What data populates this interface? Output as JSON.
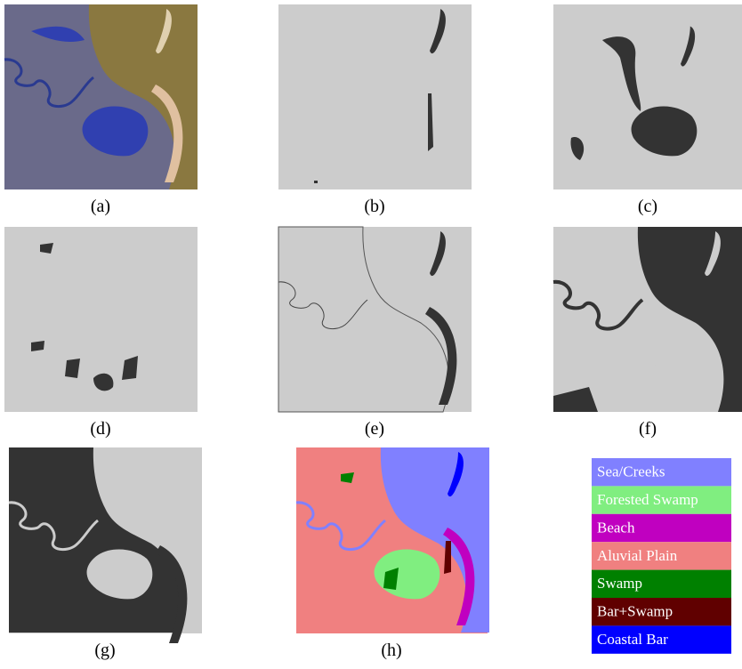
{
  "panels": [
    {
      "caption": "(a)"
    },
    {
      "caption": "(b)"
    },
    {
      "caption": "(c)"
    },
    {
      "caption": "(d)"
    },
    {
      "caption": "(e)"
    },
    {
      "caption": "(f)"
    },
    {
      "caption": "(g)"
    },
    {
      "caption": "(h)"
    }
  ],
  "legend": [
    {
      "label": "Sea/Creeks",
      "color": "#8080ff"
    },
    {
      "label": "Forested Swamp",
      "color": "#80ee80"
    },
    {
      "label": "Beach",
      "color": "#c000c0"
    },
    {
      "label": "Aluvial Plain",
      "color": "#f08080"
    },
    {
      "label": "Swamp",
      "color": "#008000"
    },
    {
      "label": "Bar+Swamp",
      "color": "#600000"
    },
    {
      "label": "Coastal Bar",
      "color": "#0000ff"
    }
  ]
}
